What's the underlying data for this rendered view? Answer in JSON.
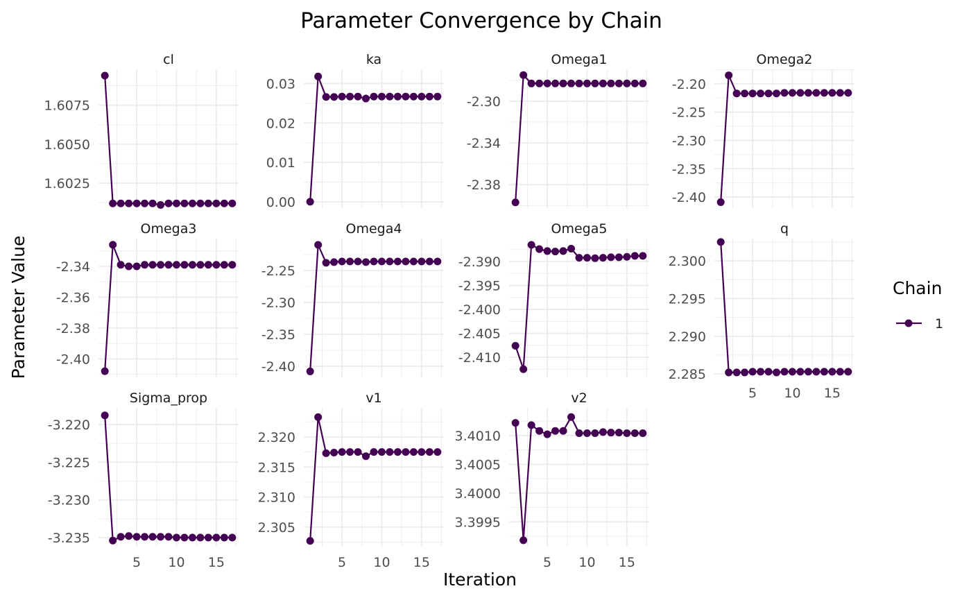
{
  "chart_data": {
    "type": "line",
    "title": "Parameter Convergence by Chain",
    "xlabel": "Iteration",
    "ylabel": "Parameter Value",
    "grid": true,
    "legend": {
      "title": "Chain",
      "placement": "right",
      "entries": [
        "1"
      ]
    },
    "series_color": "#440154",
    "grid_color": "#ebebeb",
    "xlim": [
      0.2,
      17.8
    ],
    "x_ticks": [
      5,
      10,
      15
    ],
    "x": [
      1,
      2,
      3,
      4,
      5,
      6,
      7,
      8,
      9,
      10,
      11,
      12,
      13,
      14,
      15,
      16,
      17
    ],
    "facets": [
      {
        "name": "cl",
        "ylim": [
          1.6009,
          1.6098
        ],
        "y_ticks": [
          1.6025,
          1.605,
          1.6075
        ],
        "y_tick_labels": [
          "1.6025",
          "1.6050",
          "1.6075"
        ],
        "series": [
          {
            "name": "1",
            "values": [
              1.6094,
              1.6012,
              1.6012,
              1.6012,
              1.6012,
              1.6012,
              1.6012,
              1.6011,
              1.6012,
              1.6012,
              1.6012,
              1.6012,
              1.6012,
              1.6012,
              1.6012,
              1.6012,
              1.6012
            ]
          }
        ]
      },
      {
        "name": "ka",
        "ylim": [
          -0.0016,
          0.0336
        ],
        "y_ticks": [
          0,
          0.01,
          0.02,
          0.03
        ],
        "y_tick_labels": [
          "0.00",
          "0.01",
          "0.02",
          "0.03"
        ],
        "series": [
          {
            "name": "1",
            "values": [
              0.0,
              0.0318,
              0.0266,
              0.0266,
              0.0267,
              0.0267,
              0.0267,
              0.0262,
              0.0267,
              0.0267,
              0.0267,
              0.0267,
              0.0267,
              0.0267,
              0.0267,
              0.0267,
              0.0267
            ]
          }
        ]
      },
      {
        "name": "Omega1",
        "ylim": [
          -2.4025,
          -2.2695
        ],
        "y_ticks": [
          -2.38,
          -2.34,
          -2.3
        ],
        "y_tick_labels": [
          "-2.38",
          "-2.34",
          "-2.30"
        ],
        "series": [
          {
            "name": "1",
            "values": [
              -2.397,
              -2.275,
              -2.283,
              -2.283,
              -2.283,
              -2.283,
              -2.283,
              -2.283,
              -2.283,
              -2.283,
              -2.283,
              -2.283,
              -2.283,
              -2.283,
              -2.283,
              -2.283,
              -2.283
            ]
          }
        ]
      },
      {
        "name": "Omega2",
        "ylim": [
          -2.4195,
          -2.1745
        ],
        "y_ticks": [
          -2.4,
          -2.35,
          -2.3,
          -2.25,
          -2.2
        ],
        "y_tick_labels": [
          "-2.40",
          "-2.35",
          "-2.30",
          "-2.25",
          "-2.20"
        ],
        "series": [
          {
            "name": "1",
            "values": [
              -2.409,
              -2.185,
              -2.217,
              -2.217,
              -2.217,
              -2.217,
              -2.217,
              -2.217,
              -2.216,
              -2.216,
              -2.216,
              -2.216,
              -2.216,
              -2.216,
              -2.216,
              -2.216,
              -2.216
            ]
          }
        ]
      },
      {
        "name": "Omega3",
        "ylim": [
          -2.412,
          -2.322
        ],
        "y_ticks": [
          -2.4,
          -2.38,
          -2.36,
          -2.34
        ],
        "y_tick_labels": [
          "-2.40",
          "-2.38",
          "-2.36",
          "-2.34"
        ],
        "series": [
          {
            "name": "1",
            "values": [
              -2.408,
              -2.326,
              -2.339,
              -2.34,
              -2.34,
              -2.339,
              -2.339,
              -2.339,
              -2.339,
              -2.339,
              -2.339,
              -2.339,
              -2.339,
              -2.339,
              -2.339,
              -2.339,
              -2.339
            ]
          }
        ]
      },
      {
        "name": "Omega4",
        "ylim": [
          -2.4173,
          -2.2002
        ],
        "y_ticks": [
          -2.4,
          -2.35,
          -2.3,
          -2.25
        ],
        "y_tick_labels": [
          "-2.40",
          "-2.35",
          "-2.30",
          "-2.25"
        ],
        "series": [
          {
            "name": "1",
            "values": [
              -2.408,
              -2.21,
              -2.238,
              -2.237,
              -2.236,
              -2.236,
              -2.236,
              -2.237,
              -2.236,
              -2.236,
              -2.236,
              -2.236,
              -2.236,
              -2.236,
              -2.236,
              -2.236,
              -2.236
            ]
          }
        ]
      },
      {
        "name": "Omega5",
        "ylim": [
          -2.4142,
          -2.3852
        ],
        "y_ticks": [
          -2.41,
          -2.405,
          -2.4,
          -2.395,
          -2.39
        ],
        "y_tick_labels": [
          "-2.410",
          "-2.405",
          "-2.400",
          "-2.395",
          "-2.390"
        ],
        "series": [
          {
            "name": "1",
            "values": [
              -2.4076,
              -2.4125,
              -2.3865,
              -2.3874,
              -2.3878,
              -2.3879,
              -2.3878,
              -2.3873,
              -2.3892,
              -2.3892,
              -2.3893,
              -2.3892,
              -2.3891,
              -2.3891,
              -2.389,
              -2.3888,
              -2.3888
            ]
          }
        ]
      },
      {
        "name": "q",
        "ylim": [
          2.28455,
          2.30295
        ],
        "y_ticks": [
          2.285,
          2.29,
          2.295,
          2.3
        ],
        "y_tick_labels": [
          "2.285",
          "2.290",
          "2.295",
          "2.300"
        ],
        "series": [
          {
            "name": "1",
            "values": [
              2.3025,
              2.2852,
              2.2852,
              2.2852,
              2.2853,
              2.2853,
              2.2853,
              2.2852,
              2.2853,
              2.2853,
              2.2853,
              2.2853,
              2.2853,
              2.2853,
              2.2853,
              2.2853,
              2.2853
            ]
          }
        ]
      },
      {
        "name": "Sigma_prop",
        "ylim": [
          -3.2362,
          -3.2178
        ],
        "y_ticks": [
          -3.235,
          -3.23,
          -3.225,
          -3.22
        ],
        "y_tick_labels": [
          "-3.235",
          "-3.230",
          "-3.225",
          "-3.220"
        ],
        "series": [
          {
            "name": "1",
            "values": [
              -3.2188,
              -3.2354,
              -3.2349,
              -3.2348,
              -3.2349,
              -3.2349,
              -3.2349,
              -3.2349,
              -3.2349,
              -3.235,
              -3.235,
              -3.235,
              -3.235,
              -3.235,
              -3.235,
              -3.235,
              -3.235
            ]
          }
        ]
      },
      {
        "name": "v1",
        "ylim": [
          2.30175,
          2.32485
        ],
        "y_ticks": [
          2.305,
          2.31,
          2.315,
          2.32
        ],
        "y_tick_labels": [
          "2.305",
          "2.310",
          "2.315",
          "2.320"
        ],
        "series": [
          {
            "name": "1",
            "values": [
              2.3027,
              2.3233,
              2.3173,
              2.3174,
              2.3175,
              2.3175,
              2.3175,
              2.3168,
              2.3175,
              2.3175,
              2.3175,
              2.3175,
              2.3175,
              2.3175,
              2.3175,
              2.3175,
              2.3175
            ]
          }
        ]
      },
      {
        "name": "v2",
        "ylim": [
          3.39907,
          3.40148
        ],
        "y_ticks": [
          3.3995,
          3.4,
          3.4005,
          3.401
        ],
        "y_tick_labels": [
          "3.3995",
          "3.4000",
          "3.4005",
          "3.4010"
        ],
        "series": [
          {
            "name": "1",
            "values": [
              3.40122,
              3.39918,
              3.40118,
              3.40108,
              3.40102,
              3.40108,
              3.40108,
              3.40132,
              3.40104,
              3.40104,
              3.40104,
              3.40106,
              3.40105,
              3.40105,
              3.40104,
              3.40104,
              3.40104
            ]
          }
        ]
      }
    ]
  }
}
